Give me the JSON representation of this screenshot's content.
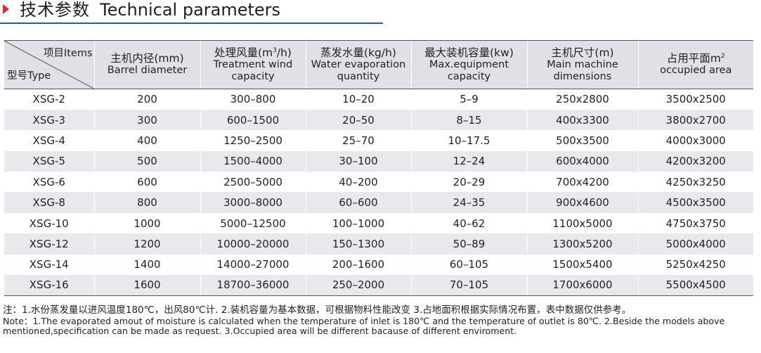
{
  "header": {
    "title_cn": "技术参数",
    "title_en": "Technical parameters",
    "accent_color": "#e8262c",
    "rule_color": "#1a5fa8"
  },
  "table": {
    "corner_top": "项目Items",
    "corner_bottom": "型号Type",
    "columns": [
      {
        "cn": "主机内径(mm)",
        "en": [
          "Barrel diameter"
        ]
      },
      {
        "cn_before": "处理风量(m",
        "cn_sup": "3",
        "cn_after": "/h)",
        "en": [
          "Treatment wind",
          "capacity"
        ]
      },
      {
        "cn": "蒸发水量(kg/h)",
        "en": [
          "Water evaporation",
          "quantity"
        ]
      },
      {
        "cn": "最大装机容量(kw)",
        "en": [
          "Max.equipment",
          "capacity"
        ]
      },
      {
        "cn": "主机尺寸(m)",
        "en": [
          "Main machine",
          "dimensions"
        ]
      },
      {
        "cn_before": "占用平面m",
        "cn_sup": "2",
        "cn_after": "",
        "en": [
          "occupied area"
        ]
      }
    ],
    "rows": [
      [
        "XSG-2",
        "200",
        "300–800",
        "10–20",
        "5–9",
        "250x2800",
        "3500x2500"
      ],
      [
        "XSG-3",
        "300",
        "600–1500",
        "20–50",
        "8–15",
        "400x3300",
        "3800x2700"
      ],
      [
        "XSG-4",
        "400",
        "1250–2500",
        "25–70",
        "10–17.5",
        "500x3500",
        "4000x3000"
      ],
      [
        "XSG-5",
        "500",
        "1500–4000",
        "30–100",
        "12–24",
        "600x4000",
        "4200x3200"
      ],
      [
        "XSG-6",
        "600",
        "2500–5000",
        "40–200",
        "20–29",
        "700x4200",
        "4250x3250"
      ],
      [
        "XSG-8",
        "800",
        "3000–8000",
        "60–600",
        "24–35",
        "900x4600",
        "4500x3500"
      ],
      [
        "XSG-10",
        "1000",
        "5000–12500",
        "100–1000",
        "40–62",
        "1100x5000",
        "4750x3750"
      ],
      [
        "XSG-12",
        "1200",
        "10000–20000",
        "150–1300",
        "50–89",
        "1300x5200",
        "5000x4000"
      ],
      [
        "XSG-14",
        "1400",
        "14000–27000",
        "200–1600",
        "60–105",
        "1500x5400",
        "5250x4250"
      ],
      [
        "XSG-16",
        "1600",
        "18700–36000",
        "250–2000",
        "70–105",
        "1700x6000",
        "5500x4500"
      ]
    ]
  },
  "notes": {
    "cn": "注：1.水份蒸发量以进风温度180℃，出风80℃计. 2.装机容量为基本数据，可根据物料性能改变 3.占地面积根据实际情况布置，表中数据仅供参考。",
    "en": "Note：1.The evaporated amout of moisture is calculated when the temperature of inlet is 180℃ and the temperature of outlet is 80℃. 2.Beside the models above mentioned,specification can be made as request. 3.Occupied area will be different bacause of different enviroment."
  }
}
